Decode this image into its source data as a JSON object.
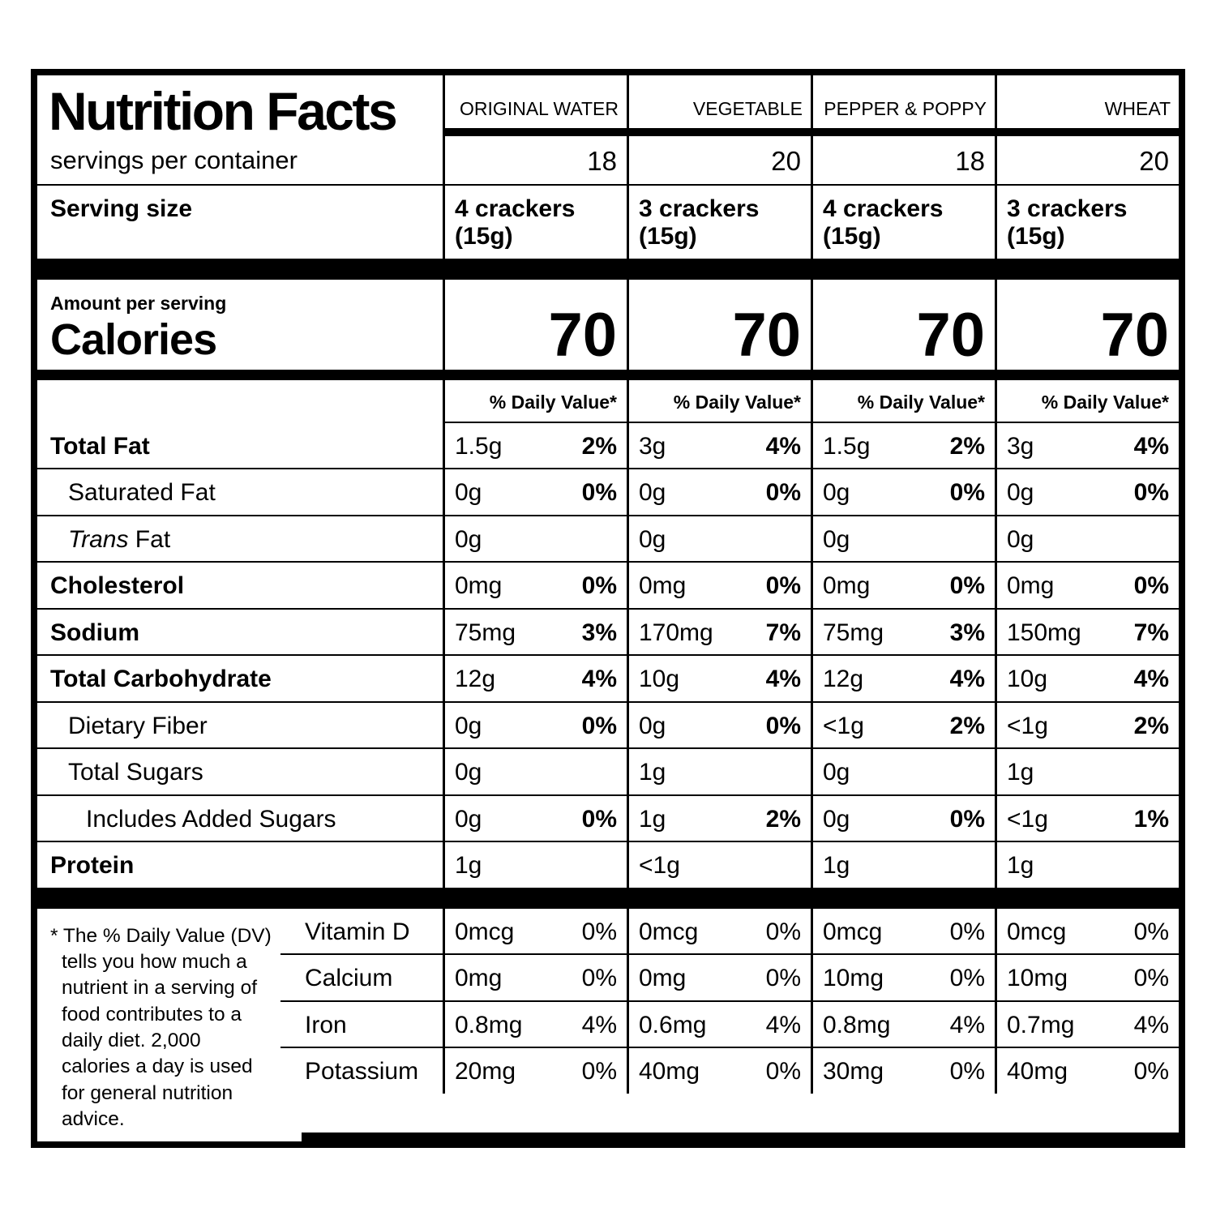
{
  "title": "Nutrition Facts",
  "labels": {
    "servings_per_container": "servings per container",
    "serving_size": "Serving size",
    "amount_per_serving": "Amount per serving",
    "calories": "Calories",
    "daily_value": "% Daily Value*"
  },
  "columns": [
    {
      "name": "ORIGINAL WATER",
      "servings": "18",
      "serving_size": "4 crackers (15g)",
      "calories": "70"
    },
    {
      "name": "VEGETABLE",
      "servings": "20",
      "serving_size": "3 crackers (15g)",
      "calories": "70"
    },
    {
      "name": "PEPPER & POPPY",
      "servings": "18",
      "serving_size": "4 crackers (15g)",
      "calories": "70"
    },
    {
      "name": "WHEAT",
      "servings": "20",
      "serving_size": "3 crackers (15g)",
      "calories": "70"
    }
  ],
  "nutrients": [
    {
      "label": "Total Fat",
      "cols": [
        {
          "amount": "1.5g",
          "dv": "2%"
        },
        {
          "amount": "3g",
          "dv": "4%"
        },
        {
          "amount": "1.5g",
          "dv": "2%"
        },
        {
          "amount": "3g",
          "dv": "4%"
        }
      ]
    },
    {
      "label": "Saturated Fat",
      "cols": [
        {
          "amount": "0g",
          "dv": "0%"
        },
        {
          "amount": "0g",
          "dv": "0%"
        },
        {
          "amount": "0g",
          "dv": "0%"
        },
        {
          "amount": "0g",
          "dv": "0%"
        }
      ]
    },
    {
      "label_italic": "Trans",
      "label": " Fat",
      "cols": [
        {
          "amount": "0g",
          "dv": ""
        },
        {
          "amount": "0g",
          "dv": ""
        },
        {
          "amount": "0g",
          "dv": ""
        },
        {
          "amount": "0g",
          "dv": ""
        }
      ]
    },
    {
      "label": "Cholesterol",
      "cols": [
        {
          "amount": "0mg",
          "dv": "0%"
        },
        {
          "amount": "0mg",
          "dv": "0%"
        },
        {
          "amount": "0mg",
          "dv": "0%"
        },
        {
          "amount": "0mg",
          "dv": "0%"
        }
      ]
    },
    {
      "label": "Sodium",
      "cols": [
        {
          "amount": "75mg",
          "dv": "3%"
        },
        {
          "amount": "170mg",
          "dv": "7%"
        },
        {
          "amount": "75mg",
          "dv": "3%"
        },
        {
          "amount": "150mg",
          "dv": "7%"
        }
      ]
    },
    {
      "label": "Total Carbohydrate",
      "cols": [
        {
          "amount": "12g",
          "dv": "4%"
        },
        {
          "amount": "10g",
          "dv": "4%"
        },
        {
          "amount": "12g",
          "dv": "4%"
        },
        {
          "amount": "10g",
          "dv": "4%"
        }
      ]
    },
    {
      "label": "Dietary Fiber",
      "cols": [
        {
          "amount": "0g",
          "dv": "0%"
        },
        {
          "amount": "0g",
          "dv": "0%"
        },
        {
          "amount": "<1g",
          "dv": "2%"
        },
        {
          "amount": "<1g",
          "dv": "2%"
        }
      ]
    },
    {
      "label": "Total Sugars",
      "cols": [
        {
          "amount": "0g",
          "dv": ""
        },
        {
          "amount": "1g",
          "dv": ""
        },
        {
          "amount": "0g",
          "dv": ""
        },
        {
          "amount": "1g",
          "dv": ""
        }
      ]
    },
    {
      "label": "Includes Added Sugars",
      "cols": [
        {
          "amount": "0g",
          "dv": "0%"
        },
        {
          "amount": "1g",
          "dv": "2%"
        },
        {
          "amount": "0g",
          "dv": "0%"
        },
        {
          "amount": "<1g",
          "dv": "1%"
        }
      ]
    },
    {
      "label": "Protein",
      "cols": [
        {
          "amount": "1g",
          "dv": ""
        },
        {
          "amount": "<1g",
          "dv": ""
        },
        {
          "amount": "1g",
          "dv": ""
        },
        {
          "amount": "1g",
          "dv": ""
        }
      ]
    }
  ],
  "vitamins": [
    {
      "label": "Vitamin D",
      "cols": [
        {
          "amount": "0mcg",
          "dv": "0%"
        },
        {
          "amount": "0mcg",
          "dv": "0%"
        },
        {
          "amount": "0mcg",
          "dv": "0%"
        },
        {
          "amount": "0mcg",
          "dv": "0%"
        }
      ]
    },
    {
      "label": "Calcium",
      "cols": [
        {
          "amount": "0mg",
          "dv": "0%"
        },
        {
          "amount": "0mg",
          "dv": "0%"
        },
        {
          "amount": "10mg",
          "dv": "0%"
        },
        {
          "amount": "10mg",
          "dv": "0%"
        }
      ]
    },
    {
      "label": "Iron",
      "cols": [
        {
          "amount": "0.8mg",
          "dv": "4%"
        },
        {
          "amount": "0.6mg",
          "dv": "4%"
        },
        {
          "amount": "0.8mg",
          "dv": "4%"
        },
        {
          "amount": "0.7mg",
          "dv": "4%"
        }
      ]
    },
    {
      "label": "Potassium",
      "cols": [
        {
          "amount": "20mg",
          "dv": "0%"
        },
        {
          "amount": "40mg",
          "dv": "0%"
        },
        {
          "amount": "30mg",
          "dv": "0%"
        },
        {
          "amount": "40mg",
          "dv": "0%"
        }
      ]
    }
  ],
  "footnote": "* The % Daily Value (DV) tells you how much a nutrient in a serving of food contributes to a daily diet. 2,000 calories a day is used for general nutrition advice."
}
